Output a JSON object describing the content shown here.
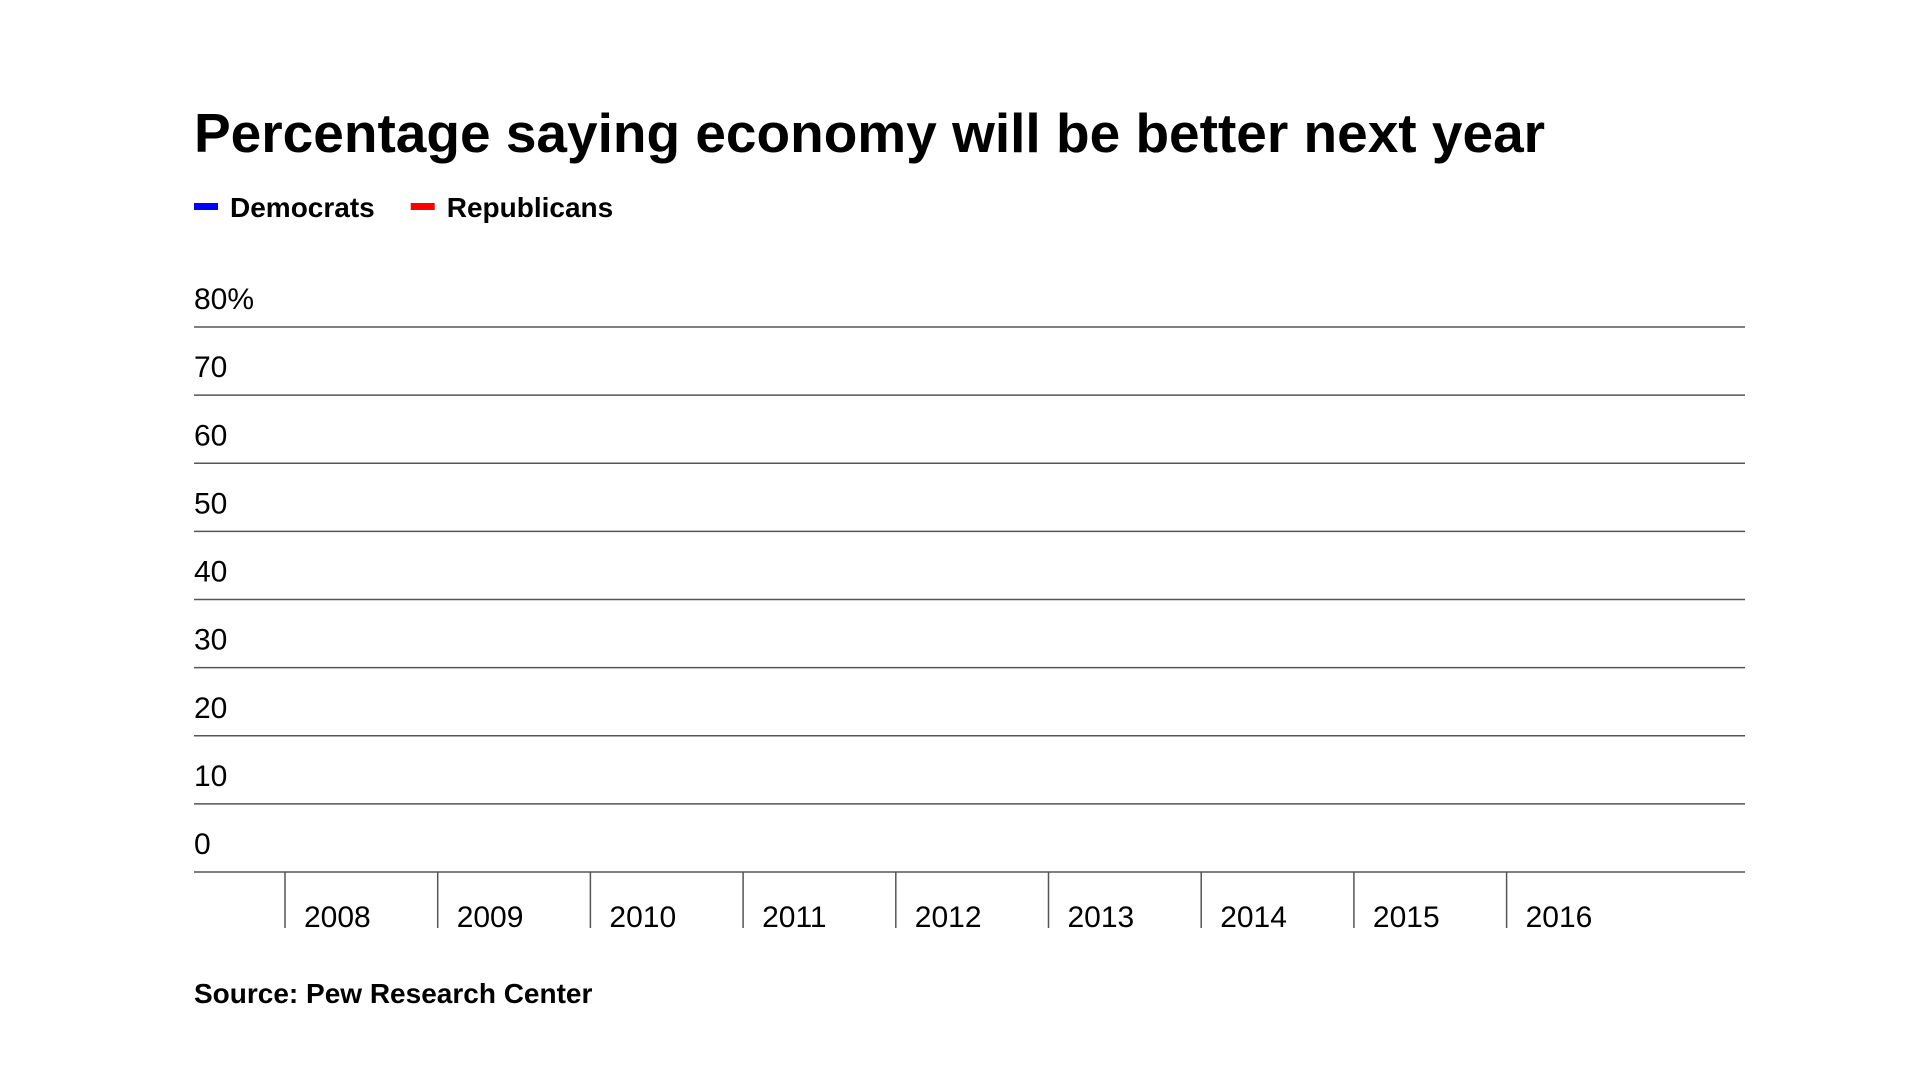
{
  "chart_data": {
    "type": "line",
    "title": "Percentage saying economy will be better next year",
    "source": "Source: Pew Research Center",
    "categories": [
      "2008",
      "2009",
      "2010",
      "2011",
      "2012",
      "2013",
      "2014",
      "2015",
      "2016"
    ],
    "series": [
      {
        "name": "Democrats",
        "color": "#0000ff",
        "values": [
          null,
          null,
          null,
          null,
          null,
          null,
          null,
          null,
          null
        ]
      },
      {
        "name": "Republicans",
        "color": "#ff0000",
        "values": [
          null,
          null,
          null,
          null,
          null,
          null,
          null,
          null,
          null
        ]
      }
    ],
    "ylim": [
      0,
      80
    ],
    "yticks": [
      0,
      10,
      20,
      30,
      40,
      50,
      60,
      70,
      {
        "value": 80,
        "label": "80%"
      }
    ],
    "grid": true
  }
}
